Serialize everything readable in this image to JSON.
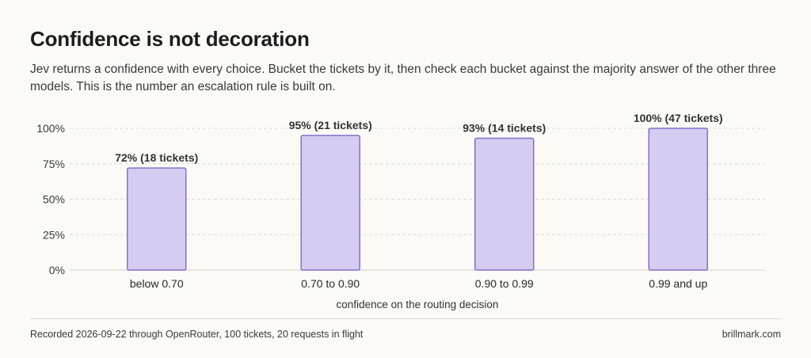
{
  "header": {
    "title": "Confidence is not decoration",
    "subtitle": "Jev returns a confidence with every choice. Bucket the tickets by it, then check each bucket against the majority answer of the other three models. This is the number an escalation rule is built on."
  },
  "chart_data": {
    "type": "bar",
    "title": "",
    "xlabel": "confidence on the routing decision",
    "ylabel": "",
    "categories": [
      "below 0.70",
      "0.70 to 0.90",
      "0.90 to 0.99",
      "0.99 and up"
    ],
    "values": [
      72,
      95,
      93,
      100
    ],
    "data_labels": [
      "72%  (18 tickets)",
      "95%  (21 tickets)",
      "93%  (14 tickets)",
      "100%  (47 tickets)"
    ],
    "ylim": [
      0,
      100
    ],
    "yticks": [
      0,
      25,
      50,
      75,
      100
    ],
    "ytick_labels": [
      "0%",
      "25%",
      "50%",
      "75%",
      "100%"
    ],
    "grid": true,
    "bar_color": "#d6cbf0",
    "bar_edge_color": "#8470c8"
  },
  "footer": {
    "source": "Recorded 2026-09-22 through OpenRouter, 100 tickets, 20 requests in flight",
    "site": "brillmark.com"
  }
}
